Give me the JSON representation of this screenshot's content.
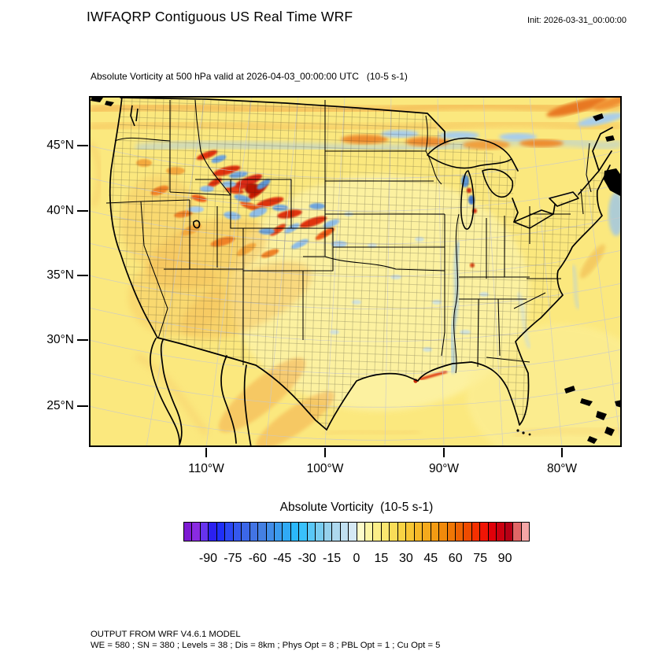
{
  "header": {
    "title": "IWFAQRP Contiguous US Real Time WRF",
    "init_label": "Init: 2026-03-31_00:00:00"
  },
  "map": {
    "subtitle": "Absolute Vorticity at 500 hPa valid at 2026-04-03_00:00:00 UTC   (10-5 s-1)",
    "lat_tick_labels": [
      "45°N",
      "40°N",
      "35°N",
      "30°N",
      "25°N"
    ],
    "lon_tick_labels": [
      "110°W",
      "100°W",
      "90°W",
      "80°W"
    ],
    "base_fill_color": "#FBE87E"
  },
  "colorbar": {
    "title": "Absolute Vorticity  (10-5 s-1)",
    "units": "10-5 s-1",
    "tick_labels": [
      "-90",
      "-75",
      "-60",
      "-45",
      "-30",
      "-15",
      "0",
      "15",
      "30",
      "45",
      "60",
      "75",
      "90"
    ],
    "tick_values": [
      -90,
      -75,
      -60,
      -45,
      -30,
      -15,
      0,
      15,
      30,
      45,
      60,
      75,
      90
    ],
    "range_min": -105,
    "range_max": 105,
    "colors": [
      "#7D1BD3",
      "#8A2BE2",
      "#6733EE",
      "#2B20F0",
      "#1F2FF8",
      "#2B47F4",
      "#3558EE",
      "#3C67E8",
      "#4274E4",
      "#4480E2",
      "#418DE8",
      "#3A9BEE",
      "#30AAF5",
      "#2BB8FB",
      "#39C1FB",
      "#59C7F6",
      "#79CCEF",
      "#96D1EC",
      "#ADD8EE",
      "#C1E0F1",
      "#D5E8F4",
      "#FDFBC9",
      "#FCF5A5",
      "#FBEE88",
      "#FAE670",
      "#F9DD58",
      "#F8D344",
      "#F7C634",
      "#F6B827",
      "#F5AA1C",
      "#F39B13",
      "#F18A0B",
      "#EF7705",
      "#ED6202",
      "#EF4B00",
      "#F53000",
      "#F01505",
      "#E00009",
      "#CB0010",
      "#B60016",
      "#E06666",
      "#F4A6A6"
    ]
  },
  "footer": {
    "line1": "OUTPUT FROM WRF V4.6.1 MODEL",
    "line2": "WE = 580 ; SN = 380 ; Levels = 38 ; Dis = 8km ; Phys Opt = 8 ; PBL Opt = 1 ; Cu Opt = 5"
  }
}
